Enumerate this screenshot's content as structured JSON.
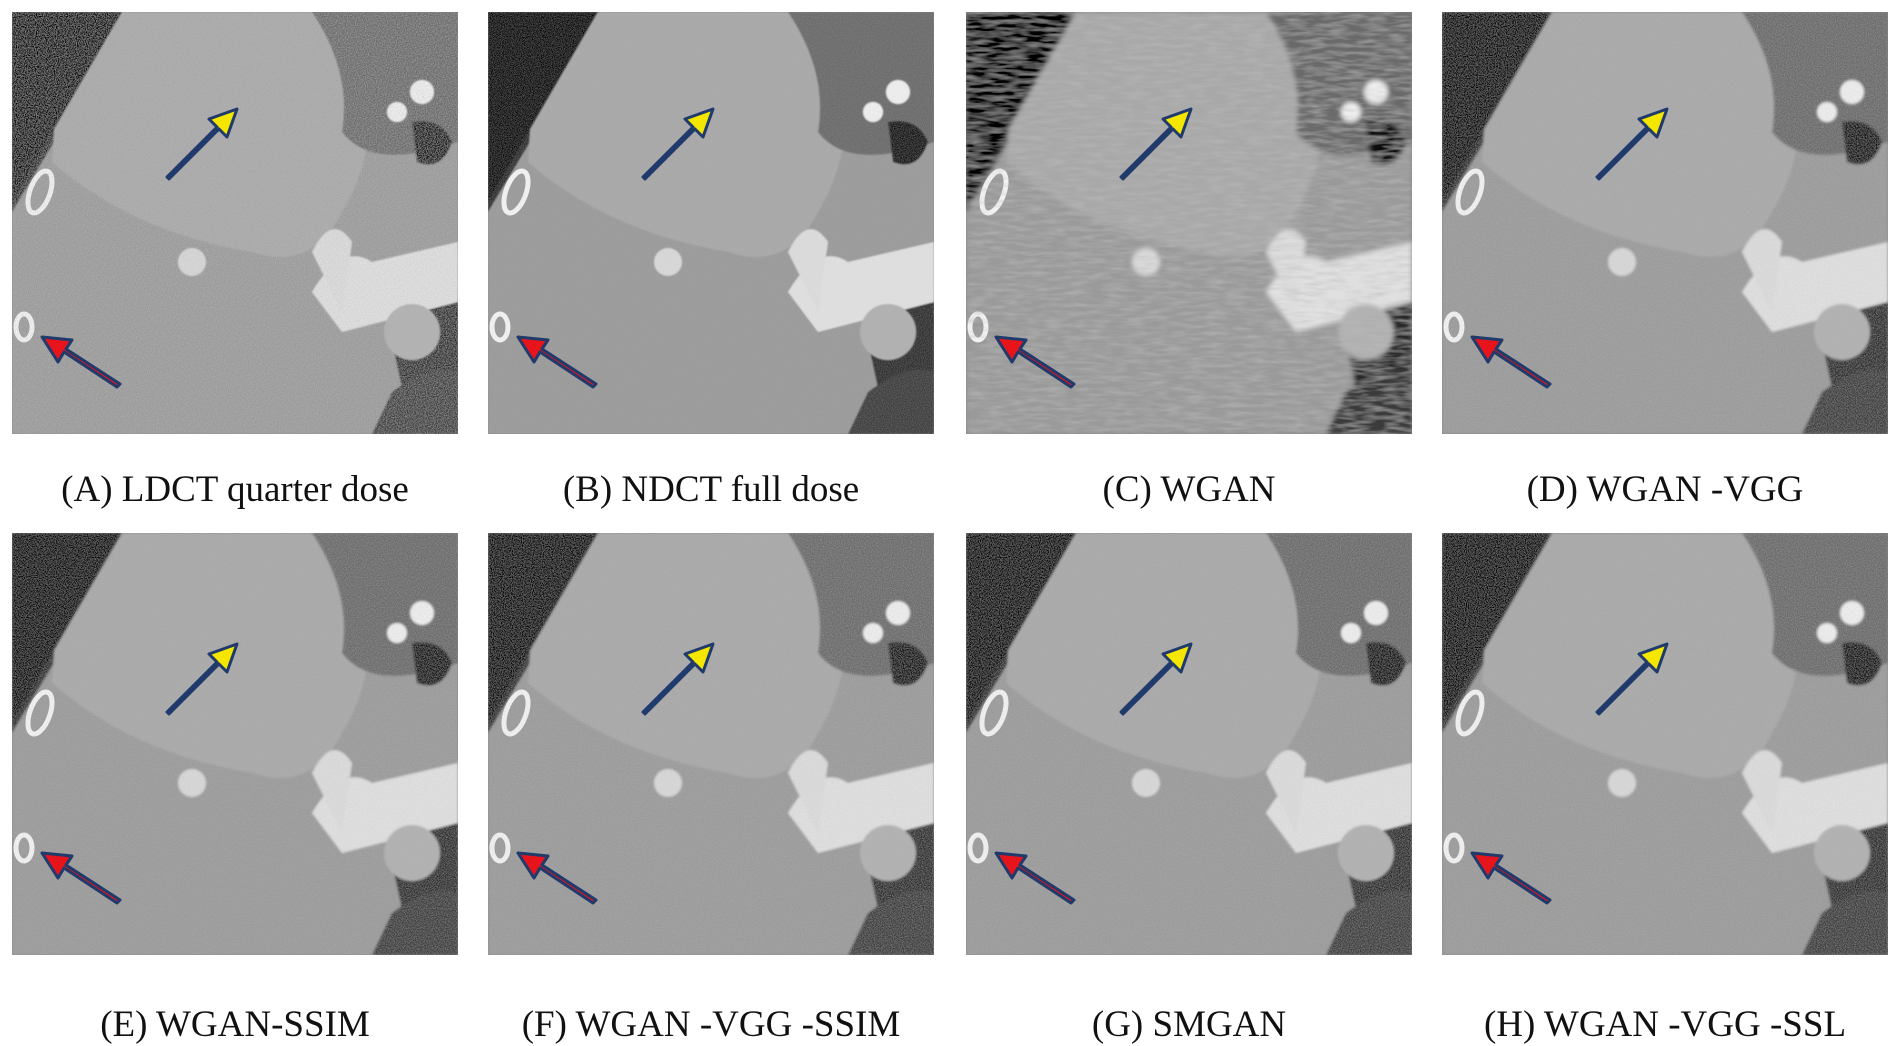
{
  "figure": {
    "panels": [
      {
        "label": "(A) LDCT quarter dose",
        "noise": "high",
        "blur": 0
      },
      {
        "label": "(B) NDCT full dose",
        "noise": "low",
        "blur": 0
      },
      {
        "label": "(C) WGAN",
        "noise": "streaky",
        "blur": 1.5
      },
      {
        "label": "(D) WGAN -VGG",
        "noise": "medium",
        "blur": 0.6
      },
      {
        "label": "(E) WGAN-SSIM",
        "noise": "medium",
        "blur": 0.3
      },
      {
        "label": "(F) WGAN -VGG -SSIM",
        "noise": "medium",
        "blur": 0.3
      },
      {
        "label": "(G) SMGAN",
        "noise": "medium",
        "blur": 0.3
      },
      {
        "label": "(H) WGAN -VGG -SSL",
        "noise": "medium",
        "blur": 0.4
      }
    ],
    "arrow_colors": {
      "yellow": "#f5e600",
      "red": "#e8141c",
      "outline": "#1f3a6b"
    }
  }
}
